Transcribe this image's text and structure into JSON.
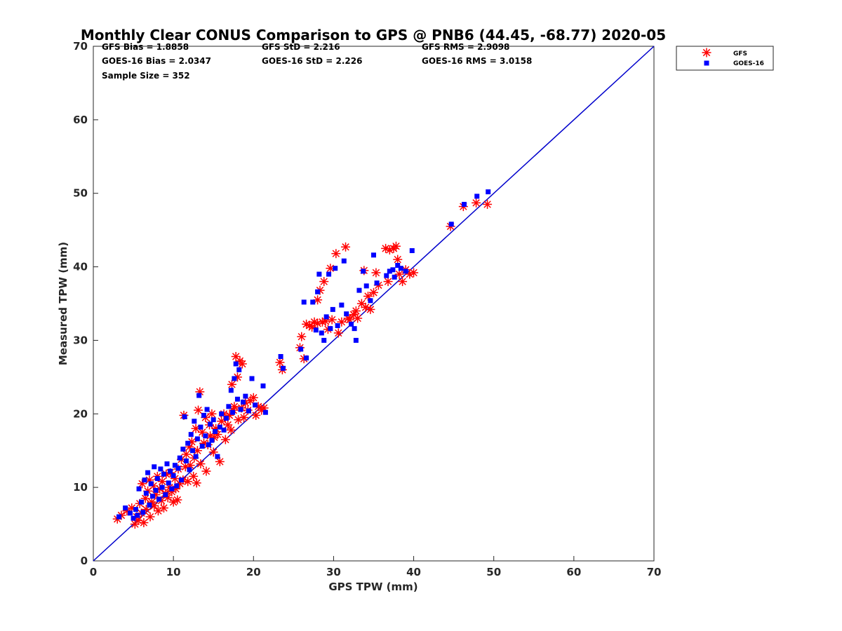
{
  "chart_data": {
    "type": "scatter",
    "title": "Monthly Clear CONUS Comparison to GPS @ PNB6 (44.45, -68.77) 2020-05",
    "xlabel": "GPS TPW (mm)",
    "ylabel": "Measured TPW (mm)",
    "xlim": [
      0,
      70
    ],
    "ylim": [
      0,
      70
    ],
    "xticks": [
      "0",
      "10",
      "20",
      "30",
      "40",
      "50",
      "60",
      "70"
    ],
    "yticks": [
      "0",
      "10",
      "20",
      "30",
      "40",
      "50",
      "60",
      "70"
    ],
    "stats": {
      "gfs_bias": "GFS Bias = 1.8858",
      "goes_bias": "GOES-16 Bias = 2.0347",
      "sample_size": "Sample Size = 352",
      "gfs_std": "GFS StD = 2.216",
      "goes_std": "GOES-16 StD = 2.226",
      "gfs_rms": "GFS RMS = 2.9098",
      "goes_rms": "GOES-16 RMS = 3.0158"
    },
    "reference_line": {
      "x": [
        0,
        70
      ],
      "y": [
        0,
        70
      ],
      "color": "#0000cc"
    },
    "legend": {
      "position": "outside-top-right",
      "entries": [
        "GFS",
        "GOES-16"
      ]
    },
    "series": [
      {
        "name": "GFS",
        "marker": "asterisk",
        "color": "#ff0000",
        "points": [
          [
            3.0,
            5.7
          ],
          [
            3.5,
            6.2
          ],
          [
            4.2,
            6.8
          ],
          [
            4.8,
            7.2
          ],
          [
            5.2,
            5.0
          ],
          [
            5.4,
            6.0
          ],
          [
            5.6,
            5.5
          ],
          [
            5.8,
            7.8
          ],
          [
            6.0,
            6.5
          ],
          [
            6.1,
            10.5
          ],
          [
            6.3,
            5.2
          ],
          [
            6.5,
            8.5
          ],
          [
            6.6,
            7.0
          ],
          [
            6.8,
            9.5
          ],
          [
            7.0,
            11.0
          ],
          [
            7.1,
            6.0
          ],
          [
            7.3,
            8.0
          ],
          [
            7.5,
            10.2
          ],
          [
            7.6,
            7.5
          ],
          [
            7.8,
            9.0
          ],
          [
            8.0,
            11.5
          ],
          [
            8.1,
            6.8
          ],
          [
            8.3,
            9.8
          ],
          [
            8.5,
            8.2
          ],
          [
            8.6,
            10.8
          ],
          [
            8.8,
            7.2
          ],
          [
            9.0,
            9.2
          ],
          [
            9.1,
            11.8
          ],
          [
            9.3,
            8.6
          ],
          [
            9.5,
            10.0
          ],
          [
            9.6,
            12.0
          ],
          [
            9.8,
            9.4
          ],
          [
            10.0,
            8.0
          ],
          [
            10.2,
            11.2
          ],
          [
            10.3,
            9.8
          ],
          [
            10.5,
            8.3
          ],
          [
            10.6,
            12.5
          ],
          [
            10.8,
            10.5
          ],
          [
            11.0,
            13.8
          ],
          [
            11.2,
            11.0
          ],
          [
            11.3,
            19.8
          ],
          [
            11.5,
            12.8
          ],
          [
            11.6,
            14.5
          ],
          [
            11.8,
            10.8
          ],
          [
            12.0,
            15.5
          ],
          [
            12.1,
            13.0
          ],
          [
            12.3,
            16.2
          ],
          [
            12.5,
            11.5
          ],
          [
            12.6,
            14.0
          ],
          [
            12.8,
            18.0
          ],
          [
            12.9,
            10.6
          ],
          [
            13.0,
            15.0
          ],
          [
            13.1,
            20.5
          ],
          [
            13.3,
            23.0
          ],
          [
            13.4,
            13.2
          ],
          [
            13.6,
            17.5
          ],
          [
            13.8,
            16.0
          ],
          [
            14.0,
            19.5
          ],
          [
            14.1,
            12.2
          ],
          [
            14.3,
            15.8
          ],
          [
            14.5,
            18.5
          ],
          [
            14.6,
            17.0
          ],
          [
            14.8,
            20.0
          ],
          [
            15.0,
            14.8
          ],
          [
            15.1,
            16.8
          ],
          [
            15.3,
            18.0
          ],
          [
            15.5,
            17.2
          ],
          [
            15.8,
            13.5
          ],
          [
            16.0,
            19.0
          ],
          [
            16.3,
            20.0
          ],
          [
            16.5,
            16.5
          ],
          [
            16.8,
            18.5
          ],
          [
            17.0,
            19.8
          ],
          [
            17.2,
            17.8
          ],
          [
            17.3,
            24.0
          ],
          [
            17.5,
            20.5
          ],
          [
            17.6,
            21.0
          ],
          [
            17.8,
            27.8
          ],
          [
            18.0,
            25.0
          ],
          [
            18.1,
            19.2
          ],
          [
            18.3,
            27.2
          ],
          [
            18.5,
            20.8
          ],
          [
            18.6,
            26.8
          ],
          [
            18.8,
            19.5
          ],
          [
            19.0,
            21.5
          ],
          [
            19.3,
            20.5
          ],
          [
            19.6,
            21.8
          ],
          [
            20.0,
            22.2
          ],
          [
            20.3,
            19.8
          ],
          [
            20.6,
            21.0
          ],
          [
            21.0,
            20.5
          ],
          [
            21.3,
            20.8
          ],
          [
            23.3,
            27.0
          ],
          [
            23.6,
            26.0
          ],
          [
            25.8,
            29.0
          ],
          [
            26.0,
            30.5
          ],
          [
            26.3,
            27.5
          ],
          [
            26.6,
            32.2
          ],
          [
            27.0,
            32.0
          ],
          [
            27.3,
            31.8
          ],
          [
            27.6,
            32.5
          ],
          [
            28.0,
            32.3
          ],
          [
            28.0,
            35.5
          ],
          [
            28.3,
            36.8
          ],
          [
            28.6,
            32.5
          ],
          [
            28.8,
            38.0
          ],
          [
            29.0,
            32.6
          ],
          [
            29.3,
            31.5
          ],
          [
            29.6,
            39.8
          ],
          [
            29.8,
            32.8
          ],
          [
            30.3,
            41.8
          ],
          [
            30.6,
            31.0
          ],
          [
            31.0,
            32.5
          ],
          [
            31.5,
            42.7
          ],
          [
            31.8,
            33.0
          ],
          [
            32.0,
            32.8
          ],
          [
            32.5,
            33.5
          ],
          [
            32.8,
            34.0
          ],
          [
            33.0,
            33.0
          ],
          [
            33.5,
            35.0
          ],
          [
            33.8,
            39.5
          ],
          [
            34.0,
            34.5
          ],
          [
            34.3,
            36.0
          ],
          [
            34.6,
            34.2
          ],
          [
            35.0,
            36.5
          ],
          [
            35.3,
            39.2
          ],
          [
            35.6,
            37.5
          ],
          [
            36.5,
            42.5
          ],
          [
            36.8,
            38.0
          ],
          [
            37.0,
            42.3
          ],
          [
            37.5,
            42.5
          ],
          [
            37.8,
            42.8
          ],
          [
            38.0,
            41.0
          ],
          [
            38.2,
            39.0
          ],
          [
            38.6,
            38.0
          ],
          [
            39.0,
            39.6
          ],
          [
            39.5,
            39.0
          ],
          [
            40.0,
            39.2
          ],
          [
            44.6,
            45.5
          ],
          [
            46.2,
            48.2
          ],
          [
            47.8,
            48.7
          ],
          [
            49.2,
            48.5
          ]
        ]
      },
      {
        "name": "GOES-16",
        "marker": "square",
        "color": "#0000ff",
        "points": [
          [
            3.2,
            6.0
          ],
          [
            4.0,
            7.2
          ],
          [
            4.6,
            6.5
          ],
          [
            5.0,
            5.8
          ],
          [
            5.3,
            7.0
          ],
          [
            5.5,
            6.2
          ],
          [
            5.7,
            9.8
          ],
          [
            6.0,
            8.0
          ],
          [
            6.2,
            6.6
          ],
          [
            6.4,
            11.0
          ],
          [
            6.6,
            9.2
          ],
          [
            6.8,
            12.0
          ],
          [
            7.0,
            7.6
          ],
          [
            7.2,
            10.5
          ],
          [
            7.4,
            8.8
          ],
          [
            7.6,
            12.8
          ],
          [
            7.8,
            9.6
          ],
          [
            8.0,
            11.2
          ],
          [
            8.2,
            8.4
          ],
          [
            8.4,
            12.5
          ],
          [
            8.6,
            10.0
          ],
          [
            8.8,
            11.8
          ],
          [
            9.0,
            9.0
          ],
          [
            9.2,
            13.2
          ],
          [
            9.4,
            10.6
          ],
          [
            9.6,
            12.2
          ],
          [
            9.8,
            9.8
          ],
          [
            10.0,
            11.6
          ],
          [
            10.2,
            13.0
          ],
          [
            10.4,
            10.2
          ],
          [
            10.6,
            12.6
          ],
          [
            10.8,
            14.0
          ],
          [
            11.0,
            11.0
          ],
          [
            11.2,
            15.2
          ],
          [
            11.4,
            19.6
          ],
          [
            11.6,
            13.6
          ],
          [
            11.8,
            16.0
          ],
          [
            12.0,
            12.4
          ],
          [
            12.2,
            17.2
          ],
          [
            12.4,
            15.0
          ],
          [
            12.6,
            19.0
          ],
          [
            12.8,
            14.2
          ],
          [
            13.0,
            16.6
          ],
          [
            13.2,
            22.5
          ],
          [
            13.4,
            18.2
          ],
          [
            13.6,
            15.6
          ],
          [
            13.8,
            19.8
          ],
          [
            14.0,
            17.0
          ],
          [
            14.2,
            20.6
          ],
          [
            14.4,
            15.8
          ],
          [
            14.6,
            18.6
          ],
          [
            14.8,
            16.4
          ],
          [
            15.0,
            19.2
          ],
          [
            15.2,
            17.6
          ],
          [
            15.5,
            14.2
          ],
          [
            15.8,
            18.2
          ],
          [
            16.0,
            20.0
          ],
          [
            16.3,
            17.8
          ],
          [
            16.6,
            19.4
          ],
          [
            16.9,
            21.0
          ],
          [
            17.2,
            23.2
          ],
          [
            17.4,
            20.2
          ],
          [
            17.6,
            24.8
          ],
          [
            17.8,
            26.8
          ],
          [
            18.0,
            22.0
          ],
          [
            18.2,
            26.0
          ],
          [
            18.4,
            20.6
          ],
          [
            18.7,
            21.6
          ],
          [
            19.0,
            22.4
          ],
          [
            19.4,
            20.4
          ],
          [
            19.8,
            24.8
          ],
          [
            20.2,
            21.2
          ],
          [
            21.2,
            23.8
          ],
          [
            21.5,
            20.2
          ],
          [
            23.4,
            27.8
          ],
          [
            23.7,
            26.2
          ],
          [
            25.9,
            28.8
          ],
          [
            26.3,
            35.2
          ],
          [
            26.6,
            27.6
          ],
          [
            27.4,
            35.2
          ],
          [
            27.8,
            31.4
          ],
          [
            28.0,
            36.6
          ],
          [
            28.2,
            39.0
          ],
          [
            28.5,
            31.0
          ],
          [
            28.8,
            30.0
          ],
          [
            29.1,
            33.2
          ],
          [
            29.4,
            39.0
          ],
          [
            29.6,
            31.6
          ],
          [
            29.9,
            34.2
          ],
          [
            30.2,
            39.8
          ],
          [
            30.5,
            32.0
          ],
          [
            31.0,
            34.8
          ],
          [
            31.3,
            40.8
          ],
          [
            31.6,
            33.6
          ],
          [
            32.2,
            32.2
          ],
          [
            32.6,
            31.6
          ],
          [
            32.8,
            30.0
          ],
          [
            33.2,
            36.8
          ],
          [
            33.7,
            39.4
          ],
          [
            34.1,
            37.4
          ],
          [
            34.6,
            35.4
          ],
          [
            35.0,
            41.6
          ],
          [
            35.4,
            37.8
          ],
          [
            36.6,
            38.8
          ],
          [
            37.0,
            39.4
          ],
          [
            37.4,
            39.6
          ],
          [
            37.6,
            38.6
          ],
          [
            38.0,
            40.2
          ],
          [
            38.4,
            39.8
          ],
          [
            39.0,
            39.4
          ],
          [
            39.8,
            42.2
          ],
          [
            44.7,
            45.8
          ],
          [
            46.3,
            48.5
          ],
          [
            47.9,
            49.6
          ],
          [
            49.3,
            50.2
          ]
        ]
      }
    ]
  }
}
